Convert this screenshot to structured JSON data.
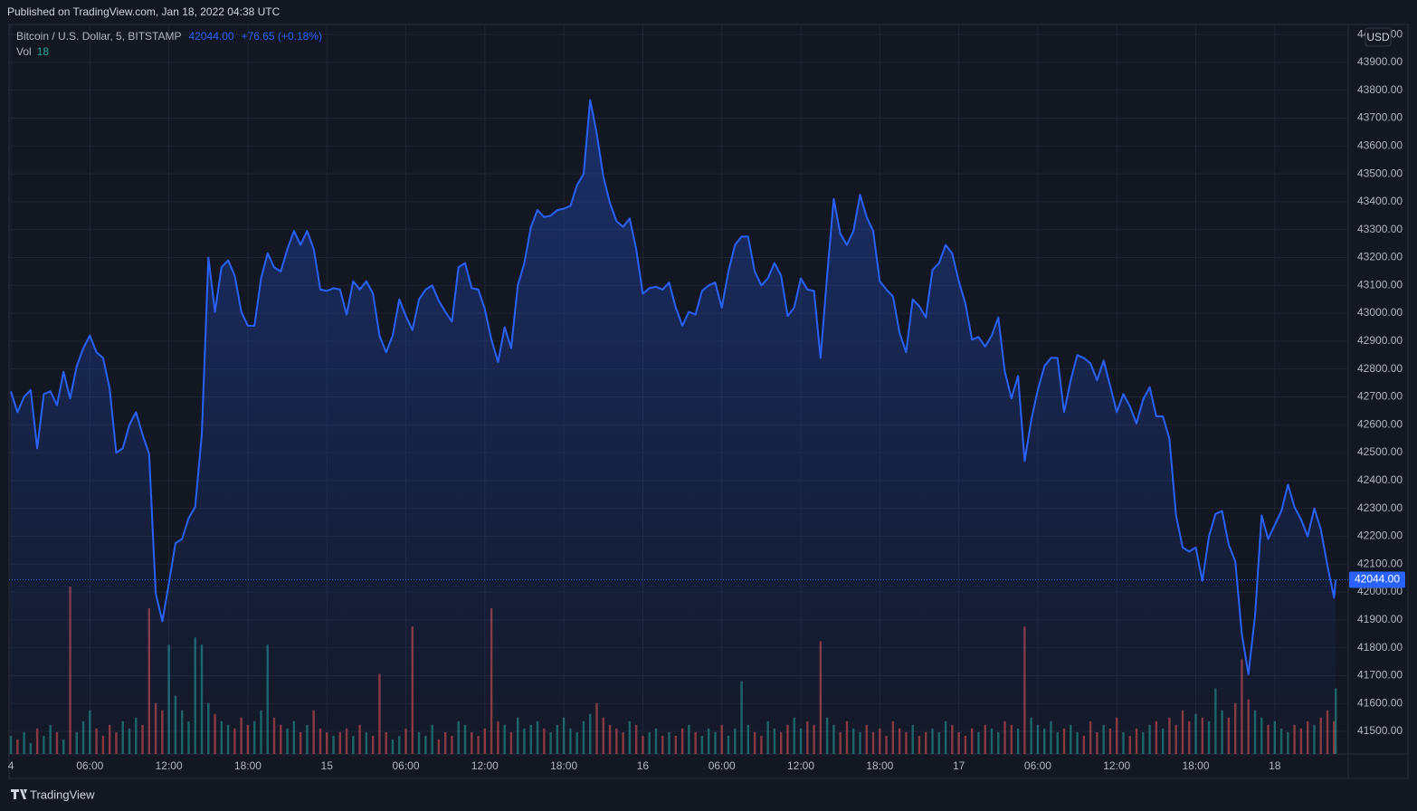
{
  "page": {
    "header": "Published on TradingView.com, Jan 18, 2022 04:38 UTC",
    "footer": "TradingView"
  },
  "chart_data": {
    "type": "area",
    "currency": "USD",
    "last_price": {
      "value": 42044,
      "label": "42044.00"
    },
    "change": "+76.65 (+0.18%)",
    "x": [
      0,
      0.5,
      1,
      1.5,
      2,
      2.5,
      3,
      3.5,
      4,
      4.5,
      5,
      5.5,
      6,
      6.5,
      7,
      7.5,
      8,
      8.5,
      9,
      9.5,
      10,
      10.5,
      11,
      11.5,
      12,
      12.5,
      13,
      13.5,
      14,
      14.5,
      15,
      15.5,
      16,
      16.5,
      17,
      17.5,
      18,
      18.5,
      19,
      19.5,
      20,
      20.5,
      21,
      21.5,
      22,
      22.5,
      23,
      23.5,
      24,
      24.5,
      25,
      25.5,
      26,
      26.5,
      27,
      27.5,
      28,
      28.5,
      29,
      29.5,
      30,
      30.5,
      31,
      31.5,
      32,
      32.5,
      33,
      33.5,
      34,
      34.5,
      35,
      35.5,
      36,
      36.5,
      37,
      37.5,
      38,
      38.5,
      39,
      39.5,
      40,
      40.5,
      41,
      41.5,
      42,
      42.5,
      43,
      43.5,
      44,
      44.5,
      45,
      45.5,
      46,
      46.5,
      47,
      47.5,
      48,
      48.5,
      49,
      49.5,
      50,
      50.5,
      51,
      51.5,
      52,
      52.5,
      53,
      53.5,
      54,
      54.5,
      55,
      55.5,
      56,
      56.5,
      57,
      57.5,
      58,
      58.5,
      59,
      59.5,
      60,
      60.5,
      61,
      61.5,
      62,
      62.5,
      63,
      63.5,
      64,
      64.5,
      65,
      65.5,
      66,
      66.5,
      67,
      67.5,
      68,
      68.5,
      69,
      69.5,
      70,
      70.5,
      71,
      71.5,
      72,
      72.5,
      73,
      73.5,
      74,
      74.5,
      75,
      75.5,
      76,
      76.5,
      77,
      77.5,
      78,
      78.5,
      79,
      79.5,
      80,
      80.5,
      81,
      81.5,
      82,
      82.5,
      83,
      83.5,
      84,
      84.5,
      85,
      85.5,
      86,
      86.5,
      87,
      87.5,
      88,
      88.5,
      89,
      89.5,
      90,
      90.5,
      91,
      91.5,
      92,
      92.5,
      93,
      93.5,
      94,
      94.5,
      95,
      95.5,
      96,
      96.5,
      97,
      97.5,
      98,
      98.5,
      99,
      99.5,
      100,
      100.5,
      100.63
    ],
    "series": [
      {
        "name": "Bitcoin / U.S. Dollar, 5, BITSTAMP",
        "color": "#2962ff",
        "values": [
          42720,
          42645,
          42700,
          42725,
          42515,
          42710,
          42720,
          42670,
          42790,
          42695,
          42810,
          42875,
          42920,
          42860,
          42840,
          42730,
          42500,
          42515,
          42600,
          42645,
          42565,
          42495,
          41995,
          41895,
          42030,
          42175,
          42190,
          42265,
          42305,
          42565,
          43200,
          43005,
          43165,
          43190,
          43135,
          43005,
          42955,
          42955,
          43125,
          43215,
          43165,
          43150,
          43230,
          43295,
          43245,
          43295,
          43230,
          43085,
          43080,
          43090,
          43085,
          42995,
          43115,
          43085,
          43115,
          43070,
          42920,
          42860,
          42920,
          43050,
          42990,
          42940,
          43050,
          43085,
          43100,
          43045,
          43005,
          42970,
          43165,
          43180,
          43090,
          43085,
          43015,
          42905,
          42825,
          42950,
          42875,
          43100,
          43180,
          43310,
          43370,
          43345,
          43350,
          43370,
          43375,
          43385,
          43460,
          43500,
          43765,
          43645,
          43490,
          43395,
          43330,
          43310,
          43340,
          43230,
          43070,
          43090,
          43095,
          43085,
          43110,
          43020,
          42955,
          43005,
          42995,
          43080,
          43100,
          43110,
          43020,
          43150,
          43245,
          43275,
          43275,
          43150,
          43100,
          43125,
          43180,
          43135,
          42990,
          43020,
          43125,
          43085,
          43080,
          42840,
          43135,
          43410,
          43285,
          43245,
          43295,
          43425,
          43345,
          43295,
          43115,
          43085,
          43060,
          42930,
          42860,
          43050,
          43025,
          42985,
          43155,
          43180,
          43245,
          43215,
          43115,
          43035,
          42905,
          42915,
          42880,
          42920,
          42985,
          42790,
          42695,
          42775,
          42470,
          42615,
          42725,
          42810,
          42840,
          42840,
          42645,
          42760,
          42850,
          42840,
          42820,
          42760,
          42830,
          42740,
          42645,
          42710,
          42665,
          42605,
          42690,
          42735,
          42630,
          42630,
          42550,
          42275,
          42160,
          42145,
          42160,
          42040,
          42200,
          42280,
          42290,
          42170,
          42110,
          41850,
          41705,
          41915,
          42275,
          42190,
          42240,
          42290,
          42385,
          42305,
          42260,
          42200,
          42300,
          42225,
          42095,
          41980,
          42044
        ]
      },
      {
        "name": "Vol",
        "type": "bar",
        "up_color": "#26a69a",
        "down_color": "#ef5350",
        "values": [
          5,
          4,
          6,
          3,
          7,
          5,
          8,
          6,
          4,
          46,
          6,
          9,
          12,
          7,
          5,
          8,
          6,
          9,
          7,
          10,
          8,
          40,
          14,
          12,
          30,
          16,
          12,
          9,
          32,
          30,
          14,
          11,
          9,
          8,
          7,
          10,
          8,
          9,
          12,
          30,
          10,
          8,
          7,
          9,
          6,
          8,
          12,
          7,
          6,
          5,
          6,
          7,
          5,
          8,
          6,
          5,
          22,
          6,
          4,
          5,
          7,
          35,
          6,
          5,
          8,
          4,
          6,
          5,
          9,
          8,
          6,
          5,
          7,
          40,
          9,
          8,
          6,
          10,
          7,
          8,
          9,
          7,
          6,
          8,
          10,
          7,
          6,
          9,
          11,
          14,
          10,
          8,
          7,
          6,
          9,
          8,
          5,
          6,
          7,
          5,
          6,
          5,
          7,
          8,
          6,
          5,
          7,
          6,
          8,
          5,
          7,
          20,
          8,
          6,
          5,
          9,
          7,
          6,
          8,
          10,
          7,
          9,
          8,
          31,
          10,
          8,
          6,
          9,
          7,
          6,
          8,
          6,
          7,
          5,
          9,
          7,
          6,
          8,
          5,
          6,
          7,
          6,
          9,
          8,
          6,
          5,
          7,
          6,
          8,
          7,
          6,
          9,
          8,
          7,
          35,
          10,
          8,
          7,
          9,
          6,
          7,
          8,
          6,
          5,
          9,
          6,
          8,
          7,
          10,
          6,
          5,
          7,
          6,
          8,
          9,
          7,
          10,
          8,
          12,
          9,
          11,
          10,
          9,
          18,
          12,
          10,
          14,
          26,
          15,
          12,
          10,
          8,
          9,
          7,
          6,
          8,
          7,
          9,
          8,
          10,
          12,
          9,
          18
        ]
      }
    ],
    "xlim": [
      -0.14,
      101.58
    ],
    "xticks": [
      {
        "value": 0,
        "label": "4"
      },
      {
        "value": 6,
        "label": "06:00"
      },
      {
        "value": 12,
        "label": "12:00"
      },
      {
        "value": 18,
        "label": "18:00"
      },
      {
        "value": 24,
        "label": "15"
      },
      {
        "value": 30,
        "label": "06:00"
      },
      {
        "value": 36,
        "label": "12:00"
      },
      {
        "value": 42,
        "label": "18:00"
      },
      {
        "value": 48,
        "label": "16"
      },
      {
        "value": 54,
        "label": "06:00"
      },
      {
        "value": 60,
        "label": "12:00"
      },
      {
        "value": 66,
        "label": "18:00"
      },
      {
        "value": 72,
        "label": "17"
      },
      {
        "value": 78,
        "label": "06:00"
      },
      {
        "value": 84,
        "label": "12:00"
      },
      {
        "value": 90,
        "label": "18:00"
      },
      {
        "value": 96,
        "label": "18"
      }
    ],
    "ylim": [
      41419,
      44036
    ],
    "yticks": [
      {
        "value": 41500,
        "label": "41500.00"
      },
      {
        "value": 41600,
        "label": "41600.00"
      },
      {
        "value": 41700,
        "label": "41700.00"
      },
      {
        "value": 41800,
        "label": "41800.00"
      },
      {
        "value": 41900,
        "label": "41900.00"
      },
      {
        "value": 42000,
        "label": "42000.00"
      },
      {
        "value": 42100,
        "label": "42100.00"
      },
      {
        "value": 42200,
        "label": "42200.00"
      },
      {
        "value": 42300,
        "label": "42300.00"
      },
      {
        "value": 42400,
        "label": "42400.00"
      },
      {
        "value": 42500,
        "label": "42500.00"
      },
      {
        "value": 42600,
        "label": "42600.00"
      },
      {
        "value": 42700,
        "label": "42700.00"
      },
      {
        "value": 42800,
        "label": "42800.00"
      },
      {
        "value": 42900,
        "label": "42900.00"
      },
      {
        "value": 43000,
        "label": "43000.00"
      },
      {
        "value": 43100,
        "label": "43100.00"
      },
      {
        "value": 43200,
        "label": "43200.00"
      },
      {
        "value": 43300,
        "label": "43300.00"
      },
      {
        "value": 43400,
        "label": "43400.00"
      },
      {
        "value": 43500,
        "label": "43500.00"
      },
      {
        "value": 43600,
        "label": "43600.00"
      },
      {
        "value": 43700,
        "label": "43700.00"
      },
      {
        "value": 43800,
        "label": "43800.00"
      },
      {
        "value": 43900,
        "label": "43900.00"
      },
      {
        "value": 44000,
        "label": "44000.00"
      }
    ],
    "grid": true
  }
}
